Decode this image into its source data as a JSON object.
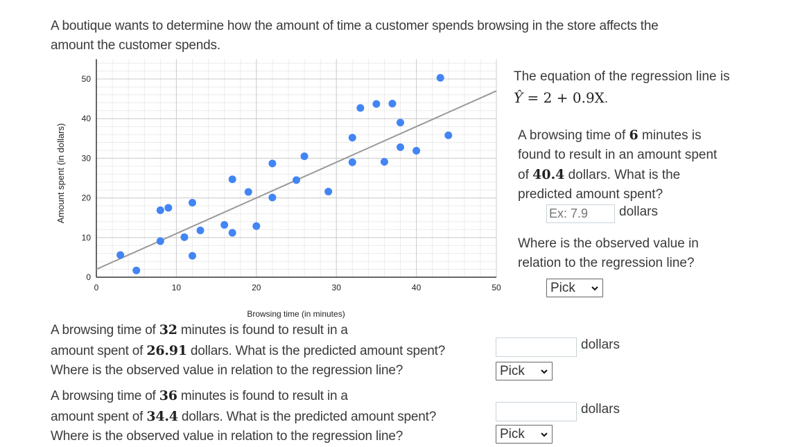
{
  "intro": {
    "line1": "A boutique wants to determine how the amount of time a customer spends browsing in the store affects the",
    "line2": "amount the customer spends."
  },
  "chart_data": {
    "type": "scatter",
    "title": "",
    "xlabel": "Browsing time (in minutes)",
    "ylabel": "Amount spent (in dollars)",
    "xlim": [
      0,
      50
    ],
    "ylim": [
      0,
      55
    ],
    "xticks": [
      0,
      10,
      20,
      30,
      40,
      50
    ],
    "yticks": [
      0,
      10,
      20,
      30,
      40,
      50
    ],
    "grid": true,
    "minor_grid_step": 2,
    "point_color": "#4285f4",
    "line_color": "#999999",
    "series": [
      {
        "name": "Observations",
        "points": [
          [
            3,
            5.6
          ],
          [
            5,
            1.7
          ],
          [
            8,
            9.1
          ],
          [
            8,
            16.9
          ],
          [
            9,
            17.5
          ],
          [
            11,
            10.1
          ],
          [
            12,
            18.8
          ],
          [
            12,
            5.4
          ],
          [
            13,
            11.8
          ],
          [
            16,
            13.2
          ],
          [
            17,
            11.2
          ],
          [
            17,
            24.7
          ],
          [
            19,
            21.5
          ],
          [
            20,
            12.9
          ],
          [
            22,
            28.7
          ],
          [
            22,
            20.1
          ],
          [
            25,
            24.5
          ],
          [
            26,
            30.5
          ],
          [
            29,
            21.6
          ],
          [
            32,
            35.2
          ],
          [
            32,
            29.0
          ],
          [
            33,
            42.7
          ],
          [
            35,
            43.7
          ],
          [
            36,
            29.1
          ],
          [
            37,
            43.8
          ],
          [
            38,
            39.0
          ],
          [
            38,
            32.8
          ],
          [
            40,
            31.9
          ],
          [
            43,
            50.3
          ],
          [
            44,
            35.8
          ]
        ]
      }
    ],
    "regression_line": {
      "intercept": 2,
      "slope": 0.9,
      "x_range": [
        0,
        50
      ]
    }
  },
  "right_panel": {
    "eq_intro": "The equation of the regression line is",
    "eq_lhs": "Ŷ",
    "eq_rhs": " = 2 + 0.9X",
    "eq_end": ".",
    "q1_part1": "A browsing time of ",
    "q1_num1": "6",
    "q1_part2": " minutes is",
    "q1_line2": "found to result in an amount spent",
    "q1_part3": "of ",
    "q1_num2": "40.4",
    "q1_part4": " dollars. What is the",
    "q1_line4": "predicted amount spent?",
    "input_placeholder": "Ex: 7.9",
    "unit": "dollars",
    "q1_where1": "Where is the observed value in",
    "q1_where2": "relation to the regression line?",
    "select_value": "Pick"
  },
  "question2": {
    "part1": "A browsing time of ",
    "num1": "32",
    "part2": " minutes is found to result in a",
    "part3": "amount spent of ",
    "num2": "26.91",
    "part4": " dollars. What is the predicted amount spent?",
    "where": "Where is the observed value in relation to the regression line?",
    "input_value": "",
    "unit": "dollars",
    "select_value": "Pick"
  },
  "question3": {
    "part1": "A browsing time of ",
    "num1": "36",
    "part2": " minutes is found to result in a",
    "part3": "amount spent of ",
    "num2": "34.4",
    "part4": " dollars. What is the predicted amount spent?",
    "where": "Where is the observed value in relation to the regression line?",
    "input_value": "",
    "unit": "dollars",
    "select_value": "Pick"
  }
}
